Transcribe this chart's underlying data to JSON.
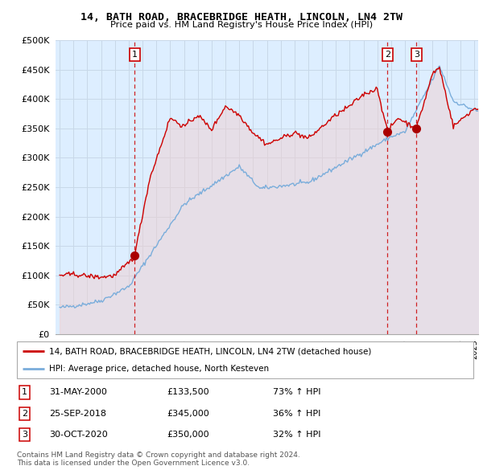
{
  "title": "14, BATH ROAD, BRACEBRIDGE HEATH, LINCOLN, LN4 2TW",
  "subtitle": "Price paid vs. HM Land Registry's House Price Index (HPI)",
  "red_label": "14, BATH ROAD, BRACEBRIDGE HEATH, LINCOLN, LN4 2TW (detached house)",
  "blue_label": "HPI: Average price, detached house, North Kesteven",
  "footer1": "Contains HM Land Registry data © Crown copyright and database right 2024.",
  "footer2": "This data is licensed under the Open Government Licence v3.0.",
  "sale_points": [
    {
      "num": 1,
      "date": "31-MAY-2000",
      "price": 133500,
      "pct": "73%",
      "dir": "↑",
      "x": 2000.42
    },
    {
      "num": 2,
      "date": "25-SEP-2018",
      "price": 345000,
      "pct": "36%",
      "dir": "↑",
      "x": 2018.73
    },
    {
      "num": 3,
      "date": "30-OCT-2020",
      "price": 350000,
      "pct": "32%",
      "dir": "↑",
      "x": 2020.83
    }
  ],
  "ylim": [
    0,
    500000
  ],
  "yticks": [
    0,
    50000,
    100000,
    150000,
    200000,
    250000,
    300000,
    350000,
    400000,
    450000,
    500000
  ],
  "xlim": [
    1994.7,
    2025.3
  ],
  "red_color": "#cc0000",
  "blue_color": "#7aaddb",
  "blue_fill_color": "#ddeeff",
  "red_fill_color": "#f5cccc",
  "sale_marker_color": "#aa0000",
  "vline_color": "#cc0000",
  "grid_color": "#c8d8e8",
  "bg_color": "#ddeeff"
}
